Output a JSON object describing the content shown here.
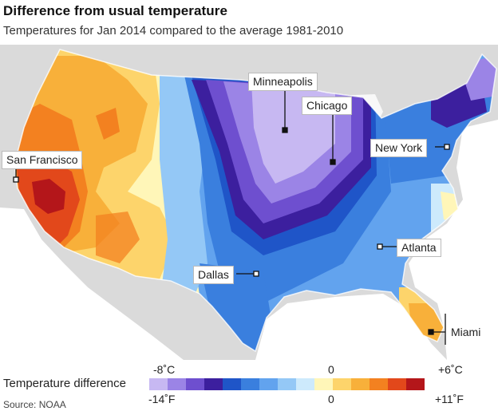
{
  "header": {
    "title": "Difference from usual temperature",
    "subtitle": "Temperatures for Jan 2014 compared to the average 1981-2010"
  },
  "cities": [
    {
      "name": "Minneapolis"
    },
    {
      "name": "Chicago"
    },
    {
      "name": "New York"
    },
    {
      "name": "San Francisco"
    },
    {
      "name": "Atlanta"
    },
    {
      "name": "Dallas"
    },
    {
      "name": "Miami"
    }
  ],
  "legend": {
    "title": "Temperature difference",
    "celsius": {
      "min": "-8˚C",
      "mid": "0",
      "max": "+6˚C"
    },
    "fahrenheit": {
      "min": "-14˚F",
      "mid": "0",
      "max": "+11˚F"
    },
    "colors": [
      "#c7b8f2",
      "#9b84e6",
      "#6e4fcf",
      "#3c1f9e",
      "#1f55c8",
      "#3a7fde",
      "#62a3ee",
      "#94c8f6",
      "#cdeafc",
      "#fff6b8",
      "#fdd46b",
      "#f8b03a",
      "#f38120",
      "#e2481b",
      "#b4161a"
    ]
  },
  "source": "Source: NOAA"
}
